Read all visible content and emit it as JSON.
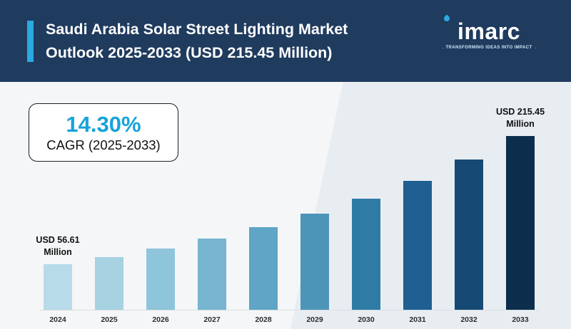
{
  "header": {
    "title_line1": "Saudi Arabia Solar Street Lighting Market",
    "title_line2": "Outlook 2025-2033 (USD 215.45 Million)",
    "logo_text": "imarc",
    "logo_tagline": "TRANSFORMING IDEAS INTO IMPACT"
  },
  "cagr_box": {
    "value": "14.30%",
    "label": "CAGR (2025-2033)"
  },
  "colors": {
    "header_bg": "#1f3b5e",
    "accent_cyan": "#2ba9e0",
    "cagr_value": "#17a2dc",
    "body_bg_left": "#f5f6f7",
    "body_bg_right": "#e8edf2",
    "darkest_bar": "#0d2d4d"
  },
  "chart_data": {
    "type": "bar",
    "title": "Saudi Arabia Solar Street Lighting Market Outlook 2025-2033 (USD 215.45 Million)",
    "unit": "USD Million",
    "categories": [
      "2024",
      "2025",
      "2026",
      "2027",
      "2028",
      "2029",
      "2030",
      "2031",
      "2032",
      "2033"
    ],
    "values": [
      56.61,
      65.7,
      76.2,
      88.4,
      102.6,
      119.0,
      138.1,
      160.2,
      185.9,
      215.45
    ],
    "bar_colors": [
      "#b7dbe9",
      "#a6d2e2",
      "#8fc5da",
      "#76b4cf",
      "#5fa5c5",
      "#4d94b9",
      "#2e7ba6",
      "#1f5f92",
      "#164a75",
      "#0d2d4d"
    ],
    "annotations": [
      {
        "index": 0,
        "text": "USD 56.61 Million"
      },
      {
        "index": 9,
        "text": "USD 215.45 Million"
      }
    ],
    "xlabel": "",
    "ylabel": "",
    "ylim": [
      0,
      230
    ],
    "grid": false,
    "legend": false
  }
}
